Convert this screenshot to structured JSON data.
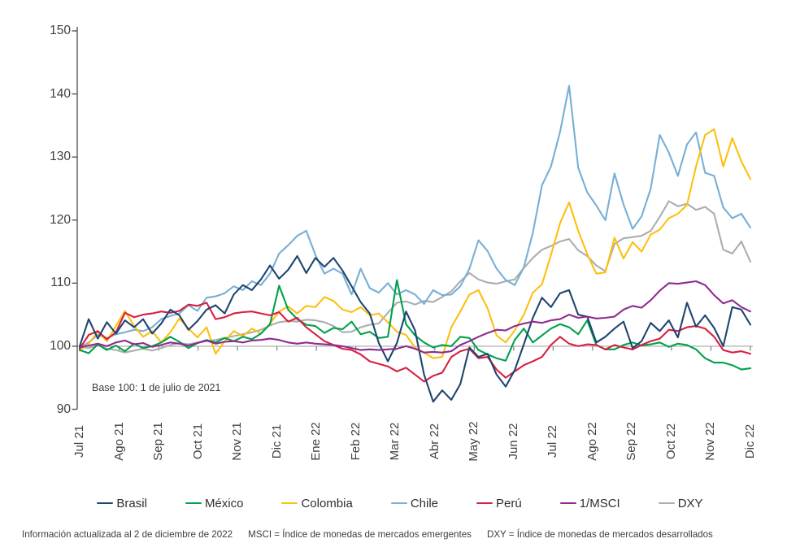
{
  "chart_data": {
    "type": "line",
    "title": "",
    "xlabel": "",
    "ylabel": "",
    "ylim": [
      90,
      150
    ],
    "y_tick_step": 10,
    "grid": "off",
    "baseline_value": 100,
    "legend_position": "bottom",
    "annotation": "Base 100: 1 de julio de 2021",
    "categories": [
      "Jul 21",
      "Ago 21",
      "Sep 21",
      "Oct 21",
      "Nov 21",
      "Dic 21",
      "Ene 22",
      "Feb 22",
      "Mar 22",
      "Abr 22",
      "May 22",
      "Jun 22",
      "Jul 22",
      "Ago 22",
      "Sep 22",
      "Oct 22",
      "Nov 22",
      "Dic 22"
    ],
    "x_resolution": "weekly, Jul 1 2021 - Dec 2 2022",
    "series": [
      {
        "name": "Brasil",
        "color": "#1f4571",
        "values": [
          100.0,
          104.3,
          101.2,
          103.8,
          102.0,
          104.1,
          103.0,
          104.3,
          102.0,
          103.6,
          105.8,
          104.9,
          102.6,
          104.0,
          105.8,
          106.5,
          105.2,
          108.2,
          109.7,
          108.9,
          110.6,
          112.8,
          110.7,
          112.1,
          114.3,
          111.6,
          114.0,
          112.6,
          114.0,
          112.0,
          109.5,
          107.0,
          105.2,
          100.5,
          97.6,
          100.5,
          105.5,
          102.5,
          95.5,
          91.2,
          93.0,
          91.5,
          94.0,
          99.8,
          98.3,
          98.8,
          95.5,
          93.6,
          96.2,
          100.3,
          104.5,
          107.7,
          106.2,
          108.4,
          108.9,
          105.0,
          104.7,
          100.6,
          101.5,
          102.8,
          103.9,
          99.7,
          100.8,
          103.7,
          102.4,
          104.1,
          101.4,
          106.9,
          103.1,
          104.9,
          102.9,
          100.0,
          106.2,
          105.8,
          103.4
        ]
      },
      {
        "name": "México",
        "color": "#00a14b",
        "values": [
          99.4,
          98.9,
          100.3,
          99.4,
          100.1,
          99.2,
          100.4,
          99.7,
          100.0,
          100.6,
          101.5,
          100.7,
          99.7,
          100.5,
          101.0,
          100.6,
          101.3,
          100.8,
          101.5,
          101.1,
          102.0,
          103.5,
          109.6,
          105.8,
          104.3,
          103.4,
          103.2,
          102.1,
          102.9,
          102.7,
          103.9,
          101.9,
          102.3,
          101.3,
          101.5,
          110.5,
          103.5,
          101.7,
          100.6,
          99.8,
          100.2,
          100.0,
          101.5,
          101.3,
          99.4,
          98.7,
          98.1,
          97.7,
          101.0,
          102.8,
          100.6,
          101.7,
          102.8,
          103.5,
          103.0,
          101.9,
          104.1,
          100.2,
          99.5,
          99.5,
          100.2,
          100.6,
          100.1,
          100.3,
          100.6,
          99.9,
          100.4,
          100.2,
          99.5,
          98.1,
          97.4,
          97.4,
          97.0,
          96.3,
          96.5
        ]
      },
      {
        "name": "Colombia",
        "color": "#fdc010",
        "values": [
          99.3,
          100.4,
          102.3,
          100.8,
          103.2,
          105.6,
          103.2,
          101.5,
          102.4,
          100.6,
          102.2,
          104.4,
          102.8,
          101.4,
          103.0,
          98.8,
          100.8,
          102.4,
          101.6,
          102.8,
          102.0,
          103.6,
          105.5,
          106.3,
          105.2,
          106.4,
          106.2,
          107.8,
          107.2,
          105.8,
          105.4,
          106.2,
          104.9,
          105.2,
          103.8,
          102.3,
          101.8,
          99.8,
          99.0,
          98.1,
          98.3,
          103.0,
          105.5,
          108.2,
          108.9,
          106.0,
          101.7,
          100.6,
          102.5,
          105.0,
          108.5,
          109.8,
          114.5,
          119.5,
          122.8,
          118.3,
          114.6,
          111.5,
          111.7,
          117.2,
          113.9,
          116.5,
          115.0,
          117.7,
          118.5,
          120.3,
          121.0,
          122.4,
          128.5,
          133.5,
          134.4,
          128.5,
          133.0,
          129.3,
          126.5
        ]
      },
      {
        "name": "Chile",
        "color": "#78afd6",
        "values": [
          99.7,
          100.6,
          101.8,
          101.3,
          101.9,
          102.2,
          102.6,
          102.4,
          103.0,
          104.3,
          104.8,
          105.2,
          106.5,
          105.6,
          107.7,
          107.9,
          108.4,
          109.5,
          108.9,
          110.3,
          109.7,
          111.5,
          114.7,
          116.0,
          117.5,
          118.3,
          114.5,
          111.5,
          112.3,
          111.5,
          108.2,
          112.3,
          109.2,
          108.5,
          110.0,
          108.2,
          108.9,
          108.2,
          106.7,
          108.9,
          108.1,
          108.2,
          109.5,
          112.3,
          116.8,
          115.1,
          112.3,
          110.5,
          109.7,
          112.5,
          118.0,
          125.5,
          128.5,
          134.0,
          141.3,
          128.3,
          124.4,
          122.3,
          120.0,
          127.4,
          122.5,
          118.6,
          120.6,
          125.0,
          133.5,
          130.7,
          127.0,
          132.0,
          133.9,
          127.5,
          127.0,
          122.0,
          120.3,
          121.0,
          118.8
        ]
      },
      {
        "name": "Perú",
        "color": "#d91f3f",
        "values": [
          99.6,
          101.8,
          102.4,
          101.1,
          102.2,
          105.3,
          104.6,
          105.0,
          105.2,
          105.5,
          105.3,
          105.6,
          106.6,
          106.4,
          106.9,
          104.3,
          104.6,
          105.2,
          105.4,
          105.5,
          105.2,
          104.9,
          105.4,
          103.9,
          104.5,
          103.0,
          101.9,
          100.8,
          100.2,
          99.6,
          99.4,
          98.7,
          97.6,
          97.2,
          96.8,
          96.0,
          96.6,
          95.5,
          94.4,
          95.3,
          95.8,
          98.3,
          99.2,
          99.6,
          98.1,
          98.3,
          96.3,
          95.0,
          96.0,
          97.0,
          97.6,
          98.3,
          100.2,
          101.5,
          100.4,
          100.0,
          100.3,
          100.2,
          99.5,
          100.2,
          99.8,
          99.5,
          100.2,
          100.8,
          101.2,
          102.6,
          102.4,
          103.0,
          103.2,
          102.8,
          101.5,
          99.4,
          99.0,
          99.2,
          98.8
        ]
      },
      {
        "name": "1/MSCI",
        "color": "#8e2b8f",
        "values": [
          99.8,
          100.1,
          100.4,
          100.0,
          100.6,
          100.9,
          100.3,
          100.5,
          99.9,
          100.2,
          100.6,
          100.4,
          100.1,
          100.5,
          100.9,
          100.4,
          100.7,
          100.8,
          100.6,
          100.9,
          101.0,
          101.2,
          101.0,
          100.6,
          100.4,
          100.6,
          100.4,
          100.3,
          100.2,
          100.0,
          99.7,
          99.4,
          99.5,
          99.4,
          99.5,
          99.6,
          100.0,
          99.6,
          99.0,
          99.1,
          99.0,
          99.2,
          100.2,
          100.8,
          101.5,
          102.1,
          102.6,
          102.5,
          103.2,
          103.6,
          103.9,
          103.7,
          104.1,
          104.3,
          105.0,
          104.5,
          104.7,
          104.4,
          104.5,
          104.7,
          105.8,
          106.4,
          106.1,
          107.3,
          108.8,
          110.0,
          109.9,
          110.1,
          110.3,
          109.7,
          108.1,
          106.8,
          107.3,
          106.2,
          105.5
        ]
      },
      {
        "name": "DXY",
        "color": "#abadaf",
        "values": [
          99.9,
          99.7,
          100.2,
          99.6,
          99.4,
          99.0,
          99.3,
          99.6,
          99.3,
          99.7,
          100.2,
          100.5,
          100.3,
          100.6,
          100.8,
          101.0,
          101.3,
          101.6,
          101.9,
          102.2,
          102.6,
          103.3,
          103.8,
          104.0,
          103.9,
          104.2,
          104.1,
          103.8,
          103.2,
          102.2,
          102.3,
          103.0,
          103.4,
          103.6,
          105.3,
          106.9,
          107.1,
          106.6,
          107.2,
          107.0,
          107.8,
          108.7,
          110.3,
          111.6,
          110.6,
          110.1,
          109.9,
          110.3,
          110.6,
          112.4,
          114.0,
          115.3,
          115.9,
          116.6,
          117.0,
          115.2,
          114.3,
          112.8,
          111.9,
          116.2,
          117.1,
          117.3,
          117.5,
          118.3,
          120.5,
          123.0,
          122.2,
          122.6,
          121.6,
          122.1,
          121.0,
          115.3,
          114.7,
          116.6,
          113.4
        ]
      }
    ]
  },
  "legend": {
    "items": [
      "Brasil",
      "México",
      "Colombia",
      "Chile",
      "Perú",
      "1/MSCI",
      "DXY"
    ]
  },
  "annotation": {
    "base_note": "Base 100: 1 de julio de 2021"
  },
  "footer": {
    "updated": "Información actualizada al 2 de diciembre de 2022",
    "msci_def": "MSCI = Índice de monedas de mercados emergentes",
    "dxy_def": "DXY = Índice de monedas de mercados desarrollados"
  },
  "colors": {
    "axis": "#595959",
    "tick_label": "#3f3f3f",
    "baseline": "#a8a8a8",
    "background": "#ffffff"
  }
}
